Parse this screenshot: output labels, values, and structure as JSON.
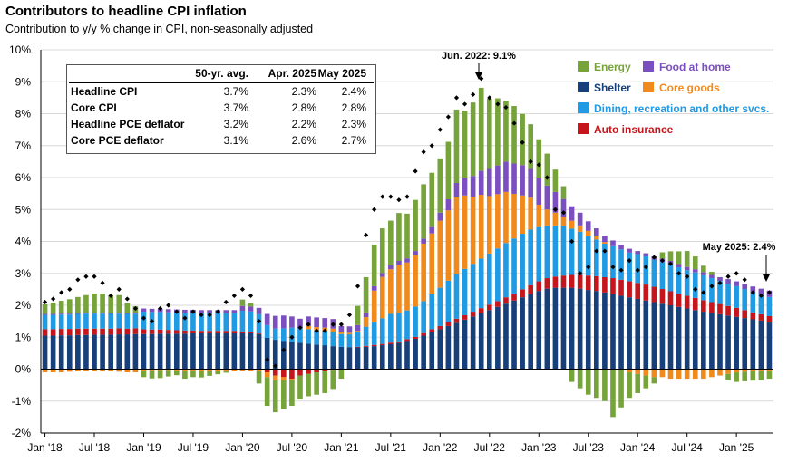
{
  "title": "Contributors to headline CPI inflation",
  "subtitle": "Contribution to y/y % change in CPI, non-seasonally adjusted",
  "table": {
    "headers": [
      "",
      "50-yr. avg.",
      "Apr. 2025",
      "May 2025"
    ],
    "rows": [
      {
        "label": "Headline CPI",
        "avg": "3.7%",
        "apr": "2.3%",
        "may": "2.4%"
      },
      {
        "label": "Core CPI",
        "avg": "3.7%",
        "apr": "2.8%",
        "may": "2.8%"
      },
      {
        "label": "Headline PCE deflator",
        "avg": "3.2%",
        "apr": "2.2%",
        "may": "2.3%"
      },
      {
        "label": "Core PCE deflator",
        "avg": "3.1%",
        "apr": "2.6%",
        "may": "2.7%"
      }
    ]
  },
  "annotations": {
    "peak": "Jun. 2022: 9.1%",
    "latest": "May 2025: 2.4%"
  },
  "legend": [
    {
      "name": "Energy",
      "color": "#77a33b"
    },
    {
      "name": "Food at home",
      "color": "#7b4fbf"
    },
    {
      "name": "Shelter",
      "color": "#173f7a"
    },
    {
      "name": "Core goods",
      "color": "#f08a1c"
    },
    {
      "name": "Dining, recreation and other svcs.",
      "color": "#1f9ae3"
    },
    {
      "name": "Auto insurance",
      "color": "#c4161c"
    }
  ],
  "chart_data": {
    "type": "bar",
    "stacked": true,
    "title": "Contributors to headline CPI inflation",
    "ylabel": "Contribution to y/y % change in CPI, non-seasonally adjusted",
    "ylim": [
      -2,
      10
    ],
    "yticks": [
      "-2%",
      "-1%",
      "0%",
      "1%",
      "2%",
      "3%",
      "4%",
      "5%",
      "6%",
      "7%",
      "8%",
      "9%",
      "10%"
    ],
    "xticks": [
      "Jan '18",
      "Jul '18",
      "Jan '19",
      "Jul '19",
      "Jan '20",
      "Jul '20",
      "Jan '21",
      "Jul '21",
      "Jan '22",
      "Jul '22",
      "Jan '23",
      "Jul '23",
      "Jan '24",
      "Jul '24",
      "Jan '25"
    ],
    "categories": [
      "Jan '18",
      "Feb '18",
      "Mar '18",
      "Apr '18",
      "May '18",
      "Jun '18",
      "Jul '18",
      "Aug '18",
      "Sep '18",
      "Oct '18",
      "Nov '18",
      "Dec '18",
      "Jan '19",
      "Feb '19",
      "Mar '19",
      "Apr '19",
      "May '19",
      "Jun '19",
      "Jul '19",
      "Aug '19",
      "Sep '19",
      "Oct '19",
      "Nov '19",
      "Dec '19",
      "Jan '20",
      "Feb '20",
      "Mar '20",
      "Apr '20",
      "May '20",
      "Jun '20",
      "Jul '20",
      "Aug '20",
      "Sep '20",
      "Oct '20",
      "Nov '20",
      "Dec '20",
      "Jan '21",
      "Feb '21",
      "Mar '21",
      "Apr '21",
      "May '21",
      "Jun '21",
      "Jul '21",
      "Aug '21",
      "Sep '21",
      "Oct '21",
      "Nov '21",
      "Dec '21",
      "Jan '22",
      "Feb '22",
      "Mar '22",
      "Apr '22",
      "May '22",
      "Jun '22",
      "Jul '22",
      "Aug '22",
      "Sep '22",
      "Oct '22",
      "Nov '22",
      "Dec '22",
      "Jan '23",
      "Feb '23",
      "Mar '23",
      "Apr '23",
      "May '23",
      "Jun '23",
      "Jul '23",
      "Aug '23",
      "Sep '23",
      "Oct '23",
      "Nov '23",
      "Dec '23",
      "Jan '24",
      "Feb '24",
      "Mar '24",
      "Apr '24",
      "May '24",
      "Jun '24",
      "Jul '24",
      "Aug '24",
      "Sep '24",
      "Oct '24",
      "Nov '24",
      "Dec '24",
      "Jan '25",
      "Feb '25",
      "Mar '25",
      "Apr '25",
      "May '25"
    ],
    "series": [
      {
        "name": "Shelter",
        "values": [
          1.05,
          1.05,
          1.06,
          1.06,
          1.07,
          1.07,
          1.08,
          1.08,
          1.08,
          1.09,
          1.09,
          1.1,
          1.1,
          1.1,
          1.11,
          1.11,
          1.11,
          1.11,
          1.12,
          1.12,
          1.12,
          1.12,
          1.12,
          1.12,
          1.12,
          1.12,
          1.1,
          0.98,
          0.92,
          0.88,
          0.85,
          0.83,
          0.8,
          0.77,
          0.75,
          0.72,
          0.7,
          0.69,
          0.68,
          0.7,
          0.72,
          0.75,
          0.78,
          0.82,
          0.88,
          0.95,
          1.05,
          1.15,
          1.25,
          1.35,
          1.45,
          1.55,
          1.65,
          1.75,
          1.85,
          1.95,
          2.05,
          2.15,
          2.25,
          2.35,
          2.45,
          2.52,
          2.55,
          2.55,
          2.55,
          2.52,
          2.48,
          2.45,
          2.4,
          2.35,
          2.3,
          2.25,
          2.2,
          2.15,
          2.1,
          2.05,
          2.0,
          1.95,
          1.9,
          1.85,
          1.8,
          1.76,
          1.72,
          1.68,
          1.64,
          1.6,
          1.56,
          1.52,
          1.46
        ]
      },
      {
        "name": "Auto insurance",
        "values": [
          0.2,
          0.2,
          0.2,
          0.2,
          0.2,
          0.2,
          0.19,
          0.19,
          0.19,
          0.19,
          0.18,
          0.18,
          0.15,
          0.14,
          0.13,
          0.12,
          0.11,
          0.1,
          0.09,
          0.08,
          0.08,
          0.08,
          0.08,
          0.08,
          0.06,
          0.04,
          0.02,
          -0.1,
          -0.2,
          -0.25,
          -0.3,
          -0.2,
          -0.15,
          -0.1,
          -0.05,
          -0.02,
          0.0,
          0.0,
          0.02,
          0.03,
          0.04,
          0.04,
          0.05,
          0.05,
          0.06,
          0.06,
          0.08,
          0.1,
          0.1,
          0.12,
          0.13,
          0.14,
          0.15,
          0.16,
          0.17,
          0.18,
          0.2,
          0.22,
          0.25,
          0.28,
          0.3,
          0.33,
          0.35,
          0.38,
          0.4,
          0.43,
          0.45,
          0.46,
          0.48,
          0.5,
          0.5,
          0.5,
          0.5,
          0.5,
          0.48,
          0.46,
          0.44,
          0.42,
          0.4,
          0.38,
          0.36,
          0.34,
          0.32,
          0.3,
          0.28,
          0.25,
          0.22,
          0.2,
          0.2
        ]
      },
      {
        "name": "Dining, recreation and other svcs.",
        "values": [
          0.45,
          0.45,
          0.45,
          0.45,
          0.46,
          0.47,
          0.47,
          0.47,
          0.46,
          0.46,
          0.46,
          0.46,
          0.55,
          0.55,
          0.55,
          0.55,
          0.55,
          0.55,
          0.55,
          0.55,
          0.55,
          0.55,
          0.55,
          0.55,
          0.65,
          0.65,
          0.6,
          0.4,
          0.35,
          0.4,
          0.45,
          0.45,
          0.45,
          0.45,
          0.45,
          0.45,
          0.4,
          0.4,
          0.45,
          0.6,
          0.7,
          0.8,
          0.9,
          0.9,
          0.9,
          0.95,
          1.0,
          1.1,
          1.2,
          1.3,
          1.4,
          1.45,
          1.5,
          1.55,
          1.6,
          1.65,
          1.7,
          1.72,
          1.74,
          1.74,
          1.7,
          1.65,
          1.6,
          1.55,
          1.45,
          1.35,
          1.25,
          1.15,
          1.05,
          1.0,
          0.95,
          0.9,
          0.9,
          0.88,
          0.85,
          0.85,
          0.85,
          0.82,
          0.8,
          0.8,
          0.78,
          0.75,
          0.72,
          0.7,
          0.68,
          0.66,
          0.64,
          0.62,
          0.6
        ]
      },
      {
        "name": "Core goods",
        "values": [
          -0.1,
          -0.1,
          -0.1,
          -0.08,
          -0.07,
          -0.06,
          -0.06,
          -0.06,
          -0.06,
          -0.08,
          -0.1,
          -0.1,
          -0.05,
          -0.04,
          -0.03,
          -0.03,
          -0.04,
          -0.05,
          -0.05,
          -0.06,
          -0.06,
          -0.06,
          -0.06,
          -0.06,
          -0.05,
          -0.05,
          -0.05,
          -0.15,
          -0.15,
          -0.1,
          -0.05,
          0.0,
          0.1,
          0.1,
          0.1,
          0.1,
          0.05,
          0.05,
          0.05,
          0.3,
          1.0,
          1.3,
          1.4,
          1.5,
          1.5,
          1.6,
          1.8,
          1.9,
          2.1,
          2.2,
          2.4,
          2.3,
          2.1,
          2.0,
          1.8,
          1.7,
          1.6,
          1.4,
          1.2,
          1.0,
          0.7,
          0.5,
          0.4,
          0.3,
          0.25,
          0.2,
          0.15,
          0.1,
          0.05,
          0.0,
          0.0,
          -0.1,
          -0.15,
          -0.2,
          -0.25,
          -0.25,
          -0.3,
          -0.3,
          -0.3,
          -0.3,
          -0.3,
          -0.25,
          -0.2,
          -0.15,
          -0.1,
          -0.08,
          -0.06,
          -0.05,
          -0.05
        ]
      },
      {
        "name": "Food at home",
        "values": [
          0.03,
          0.03,
          0.03,
          0.03,
          0.03,
          0.03,
          0.03,
          0.03,
          0.03,
          0.03,
          0.03,
          0.03,
          0.1,
          0.1,
          0.1,
          0.1,
          0.1,
          0.1,
          0.1,
          0.1,
          0.1,
          0.1,
          0.1,
          0.1,
          0.15,
          0.15,
          0.2,
          0.35,
          0.4,
          0.4,
          0.35,
          0.3,
          0.3,
          0.3,
          0.3,
          0.3,
          0.2,
          0.2,
          0.18,
          0.15,
          0.14,
          0.12,
          0.12,
          0.12,
          0.13,
          0.14,
          0.16,
          0.2,
          0.25,
          0.35,
          0.45,
          0.55,
          0.65,
          0.75,
          0.85,
          0.9,
          0.95,
          0.95,
          0.95,
          0.9,
          0.85,
          0.75,
          0.65,
          0.55,
          0.45,
          0.4,
          0.3,
          0.25,
          0.2,
          0.18,
          0.15,
          0.12,
          0.1,
          0.1,
          0.1,
          0.1,
          0.1,
          0.1,
          0.1,
          0.1,
          0.1,
          0.1,
          0.12,
          0.14,
          0.15,
          0.16,
          0.17,
          0.18,
          0.2
        ]
      },
      {
        "name": "Energy",
        "values": [
          0.3,
          0.35,
          0.4,
          0.45,
          0.5,
          0.55,
          0.6,
          0.6,
          0.55,
          0.55,
          0.3,
          0.2,
          -0.2,
          -0.25,
          -0.25,
          -0.2,
          -0.15,
          -0.25,
          -0.2,
          -0.2,
          -0.15,
          -0.1,
          -0.05,
          0.0,
          0.2,
          0.1,
          -0.4,
          -0.9,
          -1.0,
          -0.9,
          -0.8,
          -0.75,
          -0.7,
          -0.7,
          -0.7,
          -0.6,
          -0.3,
          0.0,
          0.6,
          1.1,
          1.3,
          1.4,
          1.4,
          1.5,
          1.4,
          1.6,
          1.7,
          1.7,
          1.7,
          1.8,
          2.3,
          2.1,
          2.3,
          2.6,
          2.2,
          2.1,
          1.9,
          1.8,
          1.6,
          1.4,
          1.2,
          1.0,
          0.7,
          0.4,
          -0.4,
          -0.6,
          -0.8,
          -0.9,
          -1.0,
          -1.5,
          -1.2,
          -0.8,
          -0.6,
          -0.4,
          -0.2,
          0.2,
          0.3,
          0.4,
          0.5,
          0.4,
          0.2,
          0.1,
          0.0,
          -0.2,
          -0.3,
          -0.3,
          -0.3,
          -0.3,
          -0.25
        ]
      }
    ],
    "headline_cpi": [
      2.1,
      2.2,
      2.4,
      2.5,
      2.8,
      2.9,
      2.9,
      2.7,
      2.3,
      2.5,
      2.2,
      1.9,
      1.6,
      1.5,
      1.9,
      2.0,
      1.8,
      1.6,
      1.8,
      1.7,
      1.7,
      1.8,
      2.1,
      2.3,
      2.5,
      2.3,
      1.5,
      0.3,
      0.1,
      0.6,
      1.0,
      1.3,
      1.4,
      1.2,
      1.2,
      1.4,
      1.4,
      1.7,
      2.6,
      4.2,
      5.0,
      5.4,
      5.4,
      5.3,
      5.4,
      6.2,
      6.8,
      7.0,
      7.5,
      7.9,
      8.5,
      8.3,
      8.6,
      9.1,
      8.5,
      8.3,
      8.2,
      7.7,
      7.1,
      6.5,
      6.4,
      6.0,
      5.0,
      4.9,
      4.0,
      3.0,
      3.2,
      3.7,
      3.7,
      3.2,
      3.1,
      3.4,
      3.1,
      3.2,
      3.5,
      3.4,
      3.3,
      3.0,
      2.9,
      2.5,
      2.4,
      2.6,
      2.7,
      2.9,
      3.0,
      2.8,
      2.4,
      2.3,
      2.4
    ]
  }
}
